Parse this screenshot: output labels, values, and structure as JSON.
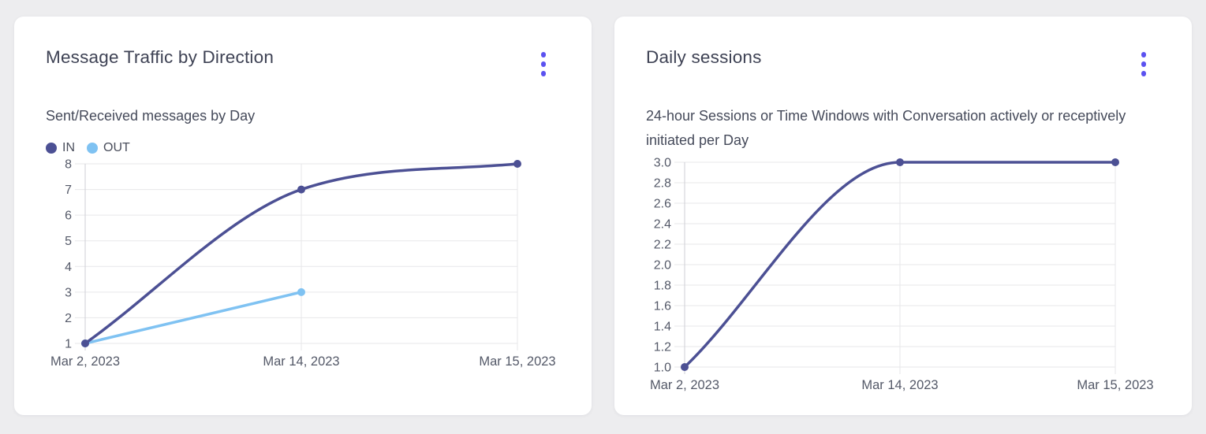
{
  "page": {
    "background_color": "#ededef",
    "card_color": "#ffffff",
    "accent_color": "#5b52f0",
    "menu_icon": "kebab-menu"
  },
  "chart_data": [
    {
      "type": "line",
      "title": "Message Traffic by Direction",
      "subtitle": "Sent/Received messages by Day",
      "categories": [
        "Mar 2, 2023",
        "Mar 14, 2023",
        "Mar 15, 2023"
      ],
      "series": [
        {
          "name": "IN",
          "color": "#4c5094",
          "values": [
            1,
            7,
            8
          ]
        },
        {
          "name": "OUT",
          "color": "#7fc2f2",
          "values": [
            1,
            3,
            null
          ]
        }
      ],
      "ylim": [
        1,
        8
      ],
      "ytick_labels": [
        "1",
        "2",
        "3",
        "4",
        "5",
        "6",
        "7",
        "8"
      ],
      "legend_position": "top-left",
      "grid": true,
      "smooth_lines": true
    },
    {
      "type": "line",
      "title": "Daily sessions",
      "subtitle": "24-hour Sessions or Time Windows with Conversation actively or receptively initiated per Day",
      "categories": [
        "Mar 2, 2023",
        "Mar 14, 2023",
        "Mar 15, 2023"
      ],
      "series": [
        {
          "name": "",
          "color": "#4c5094",
          "values": [
            1,
            3,
            3
          ]
        }
      ],
      "ylim": [
        1,
        3
      ],
      "ytick_labels": [
        "1.0",
        "1.2",
        "1.4",
        "1.6",
        "1.8",
        "2.0",
        "2.2",
        "2.4",
        "2.6",
        "2.8",
        "3.0"
      ],
      "legend_position": "none",
      "grid": true,
      "smooth_lines": true
    }
  ]
}
